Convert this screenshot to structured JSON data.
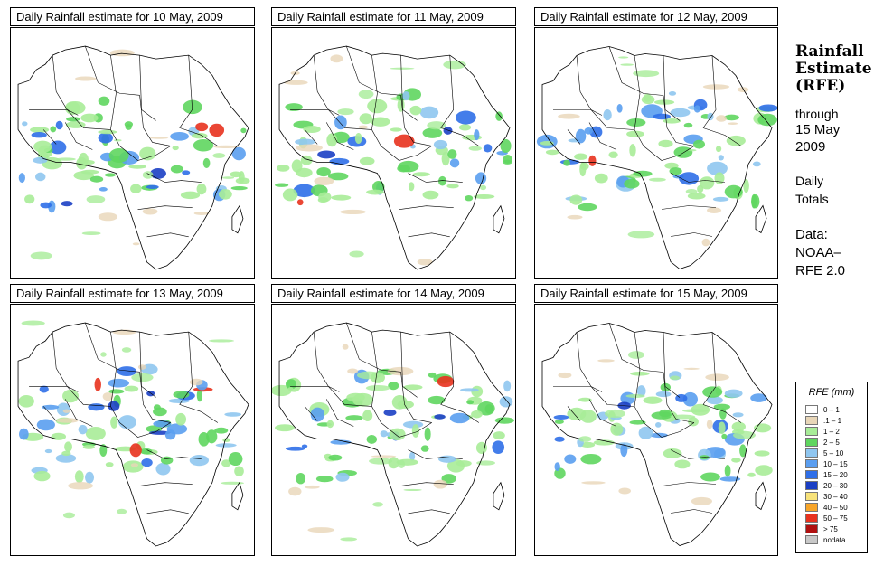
{
  "panels": [
    {
      "title": "Daily Rainfall estimate for  10 May, 2009"
    },
    {
      "title": "Daily Rainfall estimate for  11 May, 2009"
    },
    {
      "title": "Daily Rainfall estimate for  12 May, 2009"
    },
    {
      "title": "Daily Rainfall estimate for  13 May, 2009"
    },
    {
      "title": "Daily Rainfall estimate for  14 May, 2009"
    },
    {
      "title": "Daily Rainfall estimate for  15 May, 2009"
    }
  ],
  "side": {
    "title_line1": "Rainfall",
    "title_line2": "Estimate",
    "title_line3": "(RFE)",
    "through": "through",
    "date_line1": "15 May",
    "date_line2": "2009",
    "daily": "Daily",
    "totals": "Totals",
    "data_label": "Data:",
    "source_line1": "NOAA–",
    "source_line2": "RFE 2.0"
  },
  "legend": {
    "title": "RFE (mm)",
    "items": [
      {
        "label": "0 – 1",
        "color": "#ffffff"
      },
      {
        "label": ".1 – 1",
        "color": "#e8d6b8"
      },
      {
        "label": "1 – 2",
        "color": "#a8ec98"
      },
      {
        "label": "2 – 5",
        "color": "#5fd65f"
      },
      {
        "label": "5 – 10",
        "color": "#8fc6f0"
      },
      {
        "label": "10 – 15",
        "color": "#5a9ef0"
      },
      {
        "label": "15 – 20",
        "color": "#2f6fe8"
      },
      {
        "label": "20 – 30",
        "color": "#1b3fc4"
      },
      {
        "label": "30 – 40",
        "color": "#f7e27a"
      },
      {
        "label": "40 – 50",
        "color": "#f7a52a"
      },
      {
        "label": "50 – 75",
        "color": "#e8321e"
      },
      {
        "label": "> 75",
        "color": "#b01010"
      },
      {
        "label": "nodata",
        "color": "#c8c8c8"
      }
    ]
  }
}
